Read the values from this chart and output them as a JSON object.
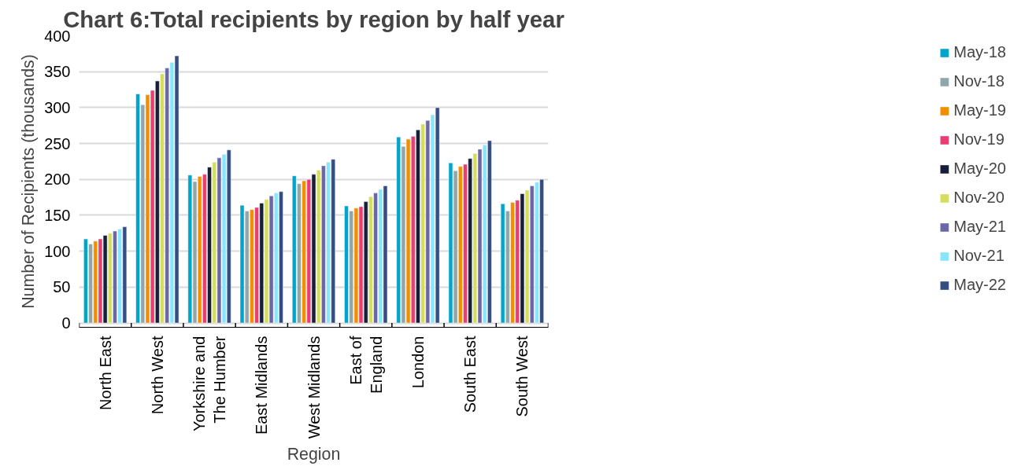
{
  "chart_data": {
    "type": "bar",
    "title": "Chart 6:Total recipients by region by half year",
    "xlabel": "Region",
    "ylabel": "Number of Recipients (thousands)",
    "categories": [
      "North East",
      "North West",
      "Yorkshire and The Humber",
      "East Midlands",
      "West Midlands",
      "East of England",
      "London",
      "South East",
      "South West"
    ],
    "series": [
      {
        "name": "May-18",
        "color": "#02a4c9",
        "values": [
          117,
          319,
          206,
          164,
          205,
          163,
          259,
          223,
          166
        ]
      },
      {
        "name": "Nov-18",
        "color": "#8fa6ab",
        "values": [
          110,
          304,
          197,
          156,
          194,
          156,
          246,
          212,
          156
        ]
      },
      {
        "name": "May-19",
        "color": "#f28e00",
        "values": [
          114,
          318,
          204,
          158,
          198,
          160,
          256,
          218,
          168
        ]
      },
      {
        "name": "Nov-19",
        "color": "#e83e70",
        "values": [
          117,
          324,
          207,
          161,
          200,
          162,
          260,
          221,
          171
        ]
      },
      {
        "name": "May-20",
        "color": "#161e38",
        "values": [
          122,
          337,
          217,
          167,
          207,
          169,
          269,
          229,
          180
        ]
      },
      {
        "name": "Nov-20",
        "color": "#d4de5c",
        "values": [
          125,
          347,
          224,
          172,
          213,
          176,
          277,
          236,
          185
        ]
      },
      {
        "name": "May-21",
        "color": "#6b67a6",
        "values": [
          128,
          355,
          230,
          177,
          219,
          181,
          282,
          242,
          191
        ]
      },
      {
        "name": "Nov-21",
        "color": "#87e6fb",
        "values": [
          131,
          363,
          235,
          181,
          224,
          186,
          290,
          248,
          196
        ]
      },
      {
        "name": "May-22",
        "color": "#344d82",
        "values": [
          134,
          372,
          241,
          183,
          228,
          191,
          300,
          254,
          200
        ]
      }
    ],
    "ylim": [
      0,
      400
    ],
    "yticks": [
      0,
      50,
      100,
      150,
      200,
      250,
      300,
      350,
      400
    ],
    "grid": "y",
    "legend": "right"
  }
}
